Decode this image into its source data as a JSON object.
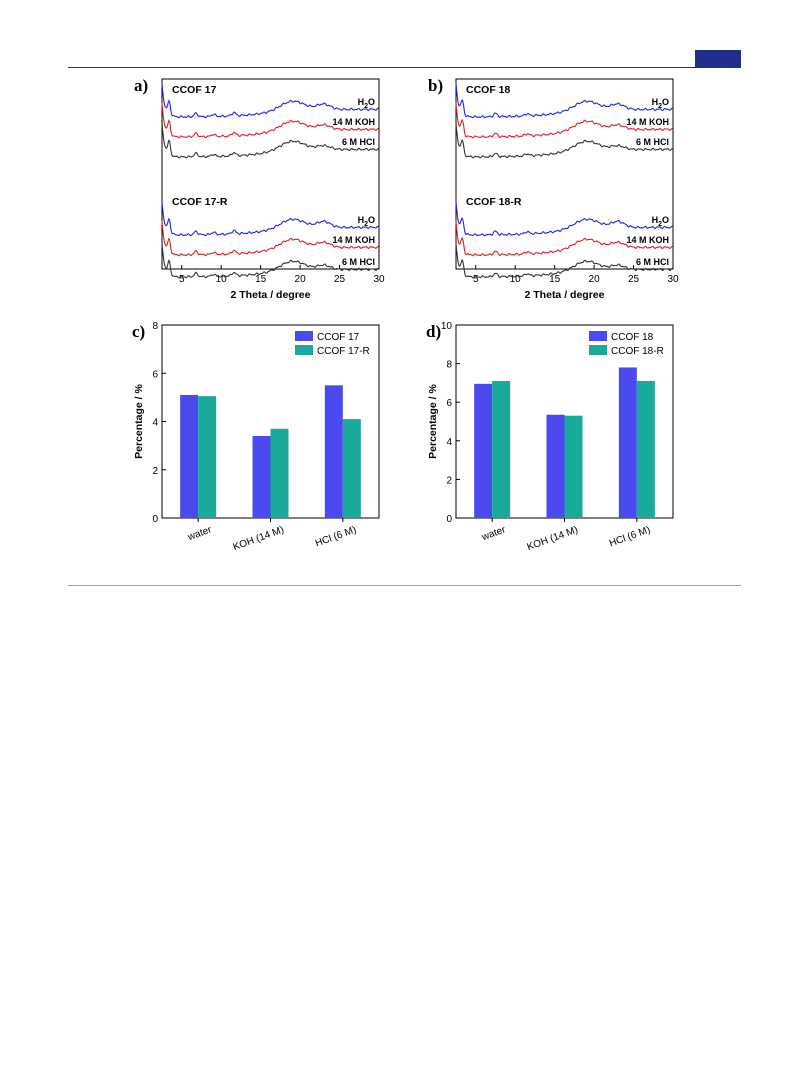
{
  "page": {
    "colors": {
      "header_rule": "#1f2f8a",
      "badge": "#1f2f8a",
      "footer_rule": "#9aa0b4"
    }
  },
  "chart_data": [
    {
      "panel": "a)",
      "type": "line",
      "xlabel": "2 Theta / degree",
      "ylabel": "",
      "xlim": [
        2.5,
        30
      ],
      "xticks": [
        5,
        10,
        15,
        20,
        25,
        30
      ],
      "groups": [
        {
          "name": "CCOF 17",
          "curves": [
            {
              "label": "H2O",
              "color": "#2222ee"
            },
            {
              "label": "14 M KOH",
              "color": "#e02020"
            },
            {
              "label": "6 M HCl",
              "color": "#333333"
            }
          ]
        },
        {
          "name": "CCOF 17-R",
          "curves": [
            {
              "label": "H2O",
              "color": "#2222ee"
            },
            {
              "label": "14 M KOH",
              "color": "#e02020"
            },
            {
              "label": "6 M HCl",
              "color": "#333333"
            }
          ]
        }
      ],
      "peaks_2theta": [
        3.4,
        6.8,
        9.0,
        11.6,
        18.5,
        22.8
      ]
    },
    {
      "panel": "b)",
      "type": "line",
      "xlabel": "2 Theta / degree",
      "ylabel": "",
      "xlim": [
        2.5,
        30
      ],
      "xticks": [
        5,
        10,
        15,
        20,
        25,
        30
      ],
      "groups": [
        {
          "name": "CCOF 18",
          "curves": [
            {
              "label": "H2O",
              "color": "#2222ee"
            },
            {
              "label": "14 M KOH",
              "color": "#e02020"
            },
            {
              "label": "6 M HCl",
              "color": "#333333"
            }
          ]
        },
        {
          "name": "CCOF 18-R",
          "curves": [
            {
              "label": "H2O",
              "color": "#2222ee"
            },
            {
              "label": "14 M KOH",
              "color": "#e02020"
            },
            {
              "label": "6 M HCl",
              "color": "#333333"
            }
          ]
        }
      ],
      "peaks_2theta": [
        3.3,
        7.5,
        11.5,
        19.5
      ]
    },
    {
      "panel": "c)",
      "type": "bar",
      "categories": [
        "water",
        "KOH (14 M)",
        "HCl (6 M)"
      ],
      "series": [
        {
          "name": "CCOF 17",
          "color": "#4a4af0",
          "values": [
            5.1,
            3.4,
            5.5
          ]
        },
        {
          "name": "CCOF 17-R",
          "color": "#1aaa9c",
          "values": [
            5.05,
            3.7,
            4.1
          ]
        }
      ],
      "ylabel": "Percentage / %",
      "ylim": [
        0,
        8
      ],
      "yticks": [
        0,
        2,
        4,
        6,
        8
      ],
      "legend": "top-right"
    },
    {
      "panel": "d)",
      "type": "bar",
      "categories": [
        "water",
        "KOH (14 M)",
        "HCl (6 M)"
      ],
      "series": [
        {
          "name": "CCOF 18",
          "color": "#4a4af0",
          "values": [
            6.95,
            5.35,
            7.8
          ]
        },
        {
          "name": "CCOF 18-R",
          "color": "#1aaa9c",
          "values": [
            7.1,
            5.3,
            7.1
          ]
        }
      ],
      "ylabel": "Percentage / %",
      "ylim": [
        0,
        10
      ],
      "yticks": [
        0,
        2,
        4,
        6,
        8,
        10
      ],
      "legend": "top-right"
    }
  ]
}
